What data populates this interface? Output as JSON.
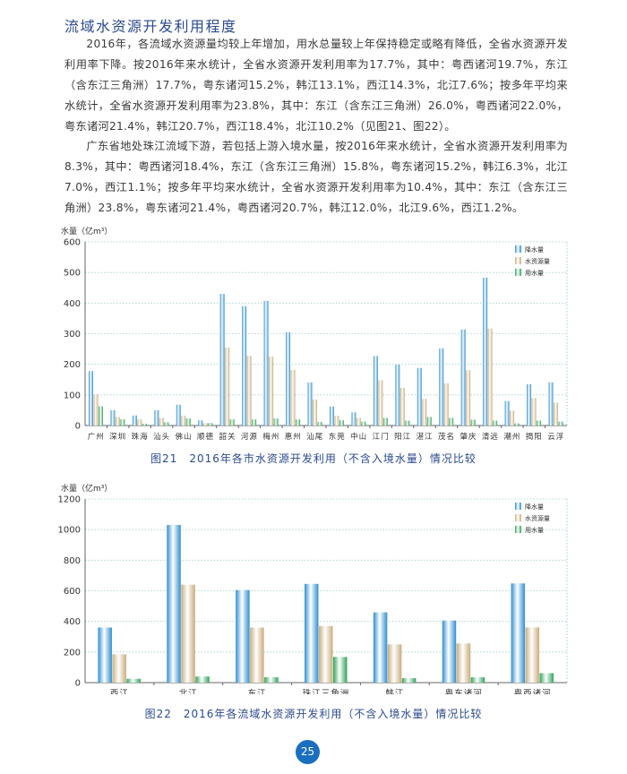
{
  "heading": "流域水资源开发利用程度",
  "paragraphs": [
    "2016年，各流域水资源量均较上年增加，用水总量较上年保持稳定或略有降低，全省水资源开发利用率下降。按2016年来水统计，全省水资源开发利用率为17.7%，其中：粤西诸河19.7%，东江（含东江三角洲）17.7%，粤东诸河15.2%，韩江13.1%，西江14.3%，北江7.6%；按多年平均来水统计，全省水资源开发利用率为23.8%，其中：东江（含东江三角洲）26.0%，粤西诸河22.0%，粤东诸河21.4%，韩江20.7%，西江18.4%，北江10.2%（见图21、图22）。",
    "广东省地处珠江流域下游，若包括上游入境水量，按2016年来水统计，全省水资源开发利用率为8.3%，其中：粤西诸河18.4%，东江（含东江三角洲）15.8%，粤东诸河15.2%，韩江6.3%，北江7.0%，西江1.1%；按多年平均来水统计，全省水资源开发利用率为10.4%，其中：东江（含东江三角洲）23.8%，粤东诸河21.4%，粤西诸河20.7%，韩江12.0%，北江9.6%，西江1.2%。"
  ],
  "colors": {
    "rain": "#2f8fd0",
    "resource": "#c9ad7c",
    "use": "#2fa35a",
    "accent": "#2b4a8e"
  },
  "chart_data": [
    {
      "type": "bar",
      "title": "图21　2016年各市水资源开发利用（不含入境水量）情况比较",
      "ylabel": "水量（亿m³）",
      "xlabel": "",
      "ylim": [
        0,
        600
      ],
      "yticks": [
        0,
        100,
        200,
        300,
        400,
        500,
        600
      ],
      "grid": true,
      "legend": "top-right",
      "categories": [
        "广州",
        "深圳",
        "珠海",
        "汕头",
        "佛山",
        "顺德",
        "韶关",
        "河源",
        "梅州",
        "惠州",
        "汕尾",
        "东莞",
        "中山",
        "江门",
        "阳江",
        "湛江",
        "茂名",
        "肇庆",
        "清远",
        "潮州",
        "揭阳",
        "云浮"
      ],
      "series": [
        {
          "name": "降水量",
          "values": [
            178,
            50,
            33,
            50,
            68,
            17,
            430,
            390,
            407,
            305,
            141,
            62,
            43,
            227,
            199,
            188,
            252,
            314,
            483,
            80,
            135,
            141
          ]
        },
        {
          "name": "水资源量",
          "values": [
            102,
            28,
            20,
            25,
            32,
            8,
            255,
            228,
            225,
            182,
            85,
            32,
            25,
            148,
            123,
            87,
            138,
            181,
            317,
            49,
            90,
            75
          ]
        },
        {
          "name": "用水量",
          "values": [
            63,
            20,
            6,
            11,
            23,
            8,
            20,
            20,
            23,
            20,
            12,
            17,
            13,
            25,
            16,
            28,
            25,
            19,
            16,
            7,
            16,
            13
          ]
        }
      ]
    },
    {
      "type": "bar",
      "title": "图22　2016年各流域水资源开发利用（不含入境水量）情况比较",
      "ylabel": "水量（亿m³）",
      "xlabel": "",
      "ylim": [
        0,
        1200
      ],
      "yticks": [
        0,
        200,
        400,
        600,
        800,
        1000,
        1200
      ],
      "grid": true,
      "legend": "top-right",
      "categories": [
        "西江",
        "北江",
        "东江",
        "珠江三角洲",
        "韩江",
        "粤东诸河",
        "粤西诸河"
      ],
      "series": [
        {
          "name": "降水量",
          "values": [
            360,
            1030,
            605,
            645,
            459,
            406,
            648
          ]
        },
        {
          "name": "水资源量",
          "values": [
            185,
            640,
            360,
            370,
            250,
            256,
            361
          ]
        },
        {
          "name": "用水量",
          "values": [
            25,
            40,
            35,
            168,
            29,
            35,
            62
          ]
        }
      ]
    }
  ],
  "page_number": "25"
}
